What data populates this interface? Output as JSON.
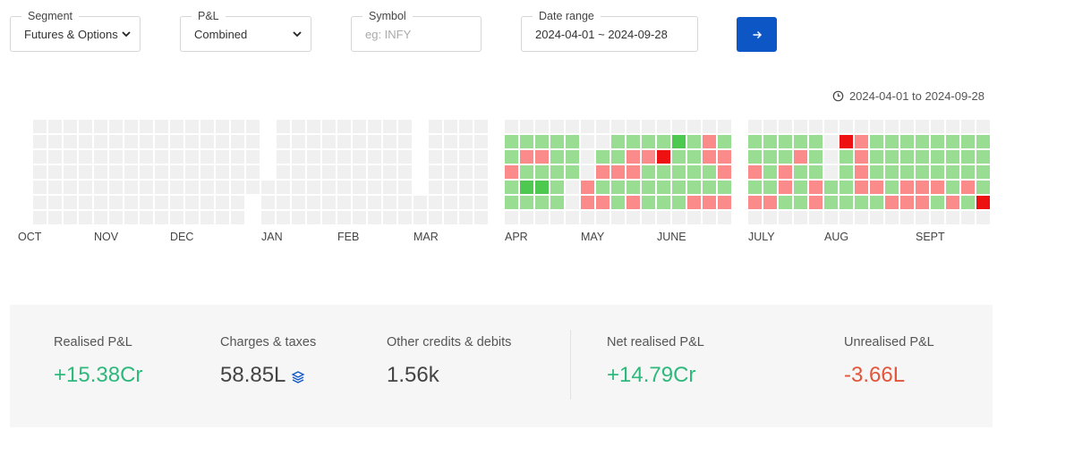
{
  "filters": {
    "segment": {
      "label": "Segment",
      "value": "Futures & Options"
    },
    "pnl": {
      "label": "P&L",
      "value": "Combined"
    },
    "symbol": {
      "label": "Symbol",
      "placeholder": "eg: INFY"
    },
    "date_range": {
      "label": "Date range",
      "value": "2024-04-01 ~ 2024-09-28"
    },
    "submit_icon": "arrow-right-icon"
  },
  "range_label": "2024-04-01 to 2024-09-28",
  "colors": {
    "empty": "#f0f0f0",
    "profit_light": "#98dd91",
    "profit_strong": "#4cc94e",
    "loss_light": "#fb8a8a",
    "loss_strong": "#ee1111",
    "accent": "#0d56c6"
  },
  "heatmap": {
    "months": [
      {
        "label": "OCT",
        "cols": [
          "0000000",
          "1111111",
          "1111111",
          "1111111",
          "1111111",
          "1111100"
        ],
        "values": []
      },
      {
        "label": "NOV",
        "cols": [
          "0000011",
          "1111111",
          "1111111",
          "1111111",
          "1111111",
          "1111111"
        ],
        "values": []
      },
      {
        "label": "DEC",
        "cols": [
          "0000011",
          "1111111",
          "1111111",
          "1111111",
          "1111111",
          "1111100"
        ],
        "values": []
      },
      {
        "label": "JAN",
        "cols": [
          "0000111",
          "1111111",
          "1111111",
          "1111111",
          "1111111",
          "1111111"
        ],
        "values": []
      },
      {
        "label": "FEB",
        "cols": [
          "0000011",
          "1111111",
          "1111111",
          "1111111",
          "1111111"
        ],
        "values": []
      },
      {
        "label": "MAR",
        "cols": [
          "0000011",
          "1111111",
          "1111111",
          "1111111",
          "1111111"
        ],
        "values": []
      },
      {
        "label": "APR",
        "cols": [
          "0ggrgg0",
          "0grgpg0",
          "0grgpg0",
          "0ggggg0",
          "0ggg000"
        ],
        "values": [
          "0ggrgg0",
          "0grgpg0",
          "0grgpg0",
          "0ggggg0",
          "0ggg000"
        ]
      },
      {
        "label": "MAY",
        "cols": [
          "0000rr0",
          "00grgr0",
          "0ggrgg0",
          "0grrgr0",
          "0grggg0"
        ],
        "values": [
          "0000rr0",
          "00grgr0",
          "0ggrgg0",
          "0grrgr0",
          "0grggg0"
        ]
      },
      {
        "label": "JUNE",
        "cols": [
          "0gRggg0",
          "0Pgggg0",
          "0ggggr0",
          "0rrggr0",
          "0grrgr0"
        ],
        "values": [
          "0gRggg0",
          "0Pgggg0",
          "0ggggr0",
          "0rrggr0",
          "0grrgr0"
        ]
      },
      {
        "label": "JULY",
        "cols": [
          "0ggrgr0",
          "0ggggr0",
          "0ggrrg0",
          "0grggg0",
          "0gggrr0",
          "0Rrggg0"
        ],
        "values": [
          "0ggrgr0",
          "0ggggr0",
          "0ggrrg0",
          "0grggg0",
          "0gggrr0",
          "0Rrggg0"
        ]
      },
      {
        "label": "AUG",
        "cols": [
          "0000gg0",
          "0Rgggg0",
          "0rrrrg0",
          "0gggrg0",
          "0ggggr0",
          "0gggrr0"
        ],
        "values": [
          "0000gg0",
          "0Rgggg0",
          "0rrrrg0",
          "0gggrg0",
          "0ggggr0",
          "0gggrr0"
        ]
      },
      {
        "label": "SEPT",
        "cols": [
          "0gggrr0",
          "0gggrg0",
          "0ggggr0",
          "0gggrg0",
          "0ggggR0"
        ],
        "values": [
          "0gggrr0",
          "0gggrg0",
          "0ggggr0",
          "0gggrg0",
          "0ggggR0"
        ]
      }
    ]
  },
  "summary": {
    "realised": {
      "label": "Realised P&L",
      "value": "+15.38Cr"
    },
    "charges": {
      "label": "Charges & taxes",
      "value": "58.85L",
      "icon": "layers-icon"
    },
    "other": {
      "label": "Other credits & debits",
      "value": "1.56k"
    },
    "net": {
      "label": "Net realised P&L",
      "value": "+14.79Cr"
    },
    "unrealised": {
      "label": "Unrealised P&L",
      "value": "-3.66L"
    }
  }
}
